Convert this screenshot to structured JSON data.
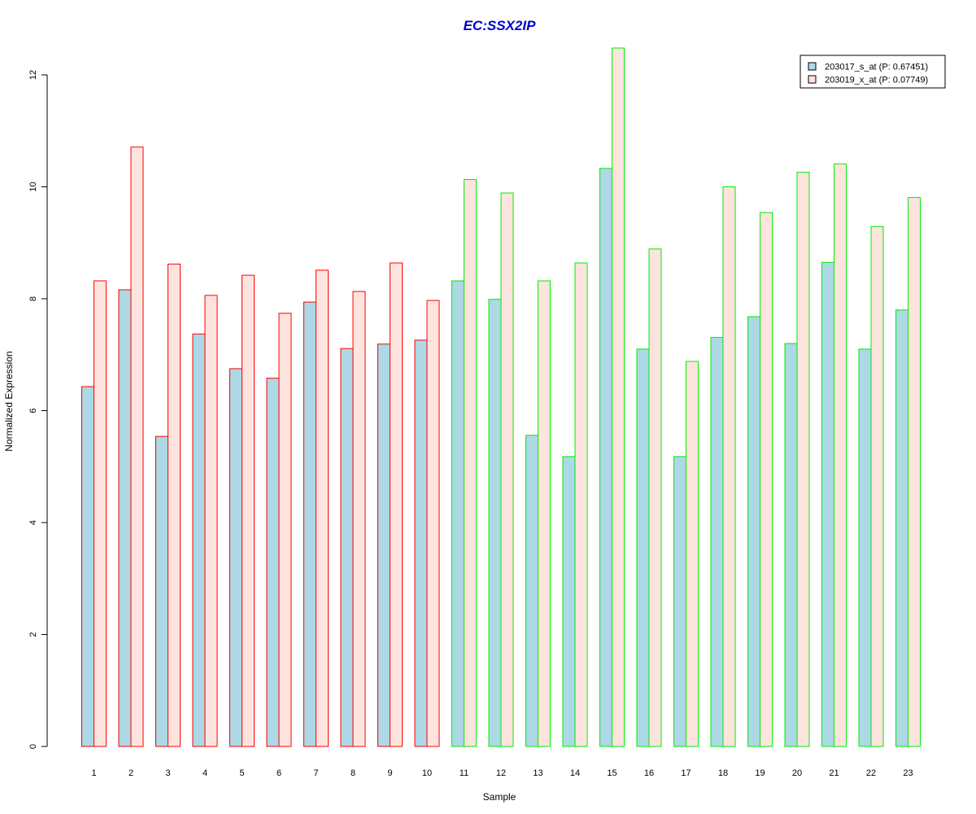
{
  "chart_data": {
    "type": "bar",
    "title": "EC:SSX2IP",
    "xlabel": "Sample",
    "ylabel": "Normalized Expression",
    "ylim": [
      0,
      12
    ],
    "yticks": [
      0,
      2,
      4,
      6,
      8,
      10,
      12
    ],
    "categories": [
      "1",
      "2",
      "3",
      "4",
      "5",
      "6",
      "7",
      "8",
      "9",
      "10",
      "11",
      "12",
      "13",
      "14",
      "15",
      "16",
      "17",
      "18",
      "19",
      "20",
      "21",
      "22",
      "23"
    ],
    "group_outline_colors": [
      "#ff0000",
      "#ff0000",
      "#ff0000",
      "#ff0000",
      "#ff0000",
      "#ff0000",
      "#ff0000",
      "#ff0000",
      "#ff0000",
      "#ff0000",
      "#00ee00",
      "#00ee00",
      "#00ee00",
      "#00ee00",
      "#00ee00",
      "#00ee00",
      "#00ee00",
      "#00ee00",
      "#00ee00",
      "#00ee00",
      "#00ee00",
      "#00ee00",
      "#00ee00"
    ],
    "series": [
      {
        "name": "203017_s_at (P: 0.67451)",
        "fill": "#add8e6",
        "values": [
          6.43,
          8.16,
          5.54,
          7.37,
          6.75,
          6.58,
          7.94,
          7.11,
          7.19,
          7.26,
          8.32,
          7.99,
          5.56,
          5.18,
          10.33,
          7.1,
          5.18,
          7.31,
          7.68,
          7.2,
          8.65,
          7.1,
          7.8
        ]
      },
      {
        "name": "203019_x_at (P: 0.07749)",
        "fill": "#fde4de",
        "values": [
          8.32,
          10.71,
          8.62,
          8.06,
          8.42,
          7.74,
          8.51,
          8.13,
          8.64,
          7.97,
          10.13,
          9.89,
          8.32,
          8.64,
          12.48,
          8.89,
          6.88,
          10.0,
          9.54,
          10.26,
          10.41,
          9.29,
          9.81
        ]
      }
    ],
    "legend_position": "top-right",
    "grid": false
  }
}
